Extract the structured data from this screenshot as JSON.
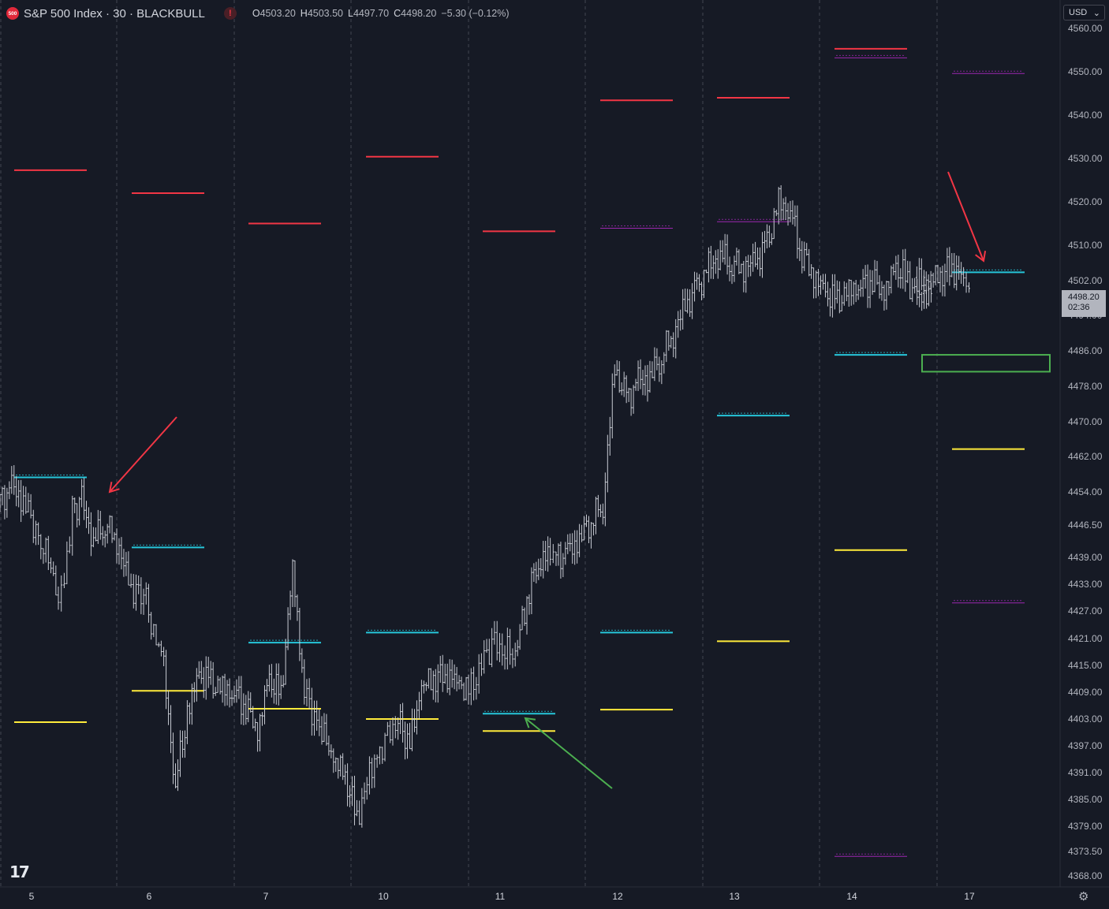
{
  "header": {
    "symbol_badge": "500",
    "title": "S&P 500 Index · 30 · BLACKBULL",
    "alert_icon": "!",
    "ohlc": {
      "o_label": "O",
      "o": "4503.20",
      "h_label": "H",
      "h": "4503.50",
      "l_label": "L",
      "l": "4497.70",
      "c_label": "C",
      "c": "4498.20",
      "change": "−5.30 (−0.12%)"
    }
  },
  "currency_button": {
    "label": "USD",
    "icon": "chevron-down-icon"
  },
  "last_price": {
    "price": "4498.20",
    "countdown": "02:36"
  },
  "colors": {
    "background": "#161a25",
    "candles": "#c8cbd3",
    "resistance": "#f23645",
    "support": "#ffeb3b",
    "pivot": "#26c6da",
    "alt": "#9c27b0",
    "arrow_bear": "#f23645",
    "arrow_bull": "#4caf50",
    "box": "#4caf50"
  },
  "chart_data": {
    "type": "line",
    "title": "",
    "ylabel": "",
    "ylim": [
      4366,
      4562
    ],
    "x_tick_labels": [
      "5",
      "6",
      "7",
      "10",
      "11",
      "12",
      "13",
      "14",
      "17"
    ],
    "y_tick_labels": [
      "4560.00",
      "4550.00",
      "4540.00",
      "4530.00",
      "4520.00",
      "4510.00",
      "4502.00",
      "4494.00",
      "4486.00",
      "4478.00",
      "4470.00",
      "4462.00",
      "4454.00",
      "4446.50",
      "4439.00",
      "4433.00",
      "4427.00",
      "4421.00",
      "4415.00",
      "4409.00",
      "4403.00",
      "4397.00",
      "4391.00",
      "4385.00",
      "4379.00",
      "4373.50",
      "4368.00"
    ],
    "sessions": [
      "5",
      "6",
      "7",
      "10",
      "11",
      "12",
      "13",
      "14",
      "17"
    ],
    "price_path": {
      "x_session": [
        0,
        0.1,
        0.2,
        0.35,
        0.5,
        0.55,
        0.62,
        0.7,
        0.8,
        0.9,
        1.0,
        1.1,
        1.25,
        1.4,
        1.5,
        1.58,
        1.62,
        1.7,
        1.8,
        1.9,
        2.0,
        2.1,
        2.2,
        2.3,
        2.4,
        2.5,
        2.6,
        2.75,
        2.85,
        2.95,
        3.05,
        3.2,
        3.4,
        3.5,
        3.6,
        3.7,
        3.8,
        3.9,
        4.0,
        4.2,
        4.4,
        4.5,
        4.6,
        4.7,
        4.75,
        4.85,
        4.95,
        5.05,
        5.15,
        5.25,
        5.35,
        5.45,
        5.55,
        5.65,
        5.75,
        5.85,
        5.95,
        6.05,
        6.15,
        6.25,
        6.35,
        6.45,
        6.55,
        6.65,
        6.75,
        6.85,
        6.95,
        7.05,
        7.15,
        7.25,
        7.35,
        7.45,
        7.55,
        7.65,
        7.75,
        7.85,
        7.95,
        8.05,
        8.15,
        8.25,
        8.35,
        8.45,
        8.52
      ],
      "close": [
        4452,
        4455,
        4452,
        4443,
        4432,
        4434,
        4450,
        4452,
        4443,
        4447,
        4443,
        4433,
        4429,
        4414,
        4388,
        4402,
        4407,
        4413,
        4411,
        4410,
        4409,
        4406,
        4400,
        4412,
        4408,
        4437,
        4409,
        4400,
        4394,
        4390,
        4381,
        4394,
        4403,
        4397,
        4410,
        4412,
        4413,
        4412,
        4409,
        4420,
        4417,
        4430,
        4438,
        4440,
        4439,
        4440,
        4443,
        4448,
        4451,
        4482,
        4475,
        4479,
        4480,
        4485,
        4490,
        4496,
        4500,
        4505,
        4508,
        4506,
        4505,
        4506,
        4510,
        4520,
        4518,
        4508,
        4503,
        4499,
        4497,
        4500,
        4501,
        4502,
        4499,
        4505,
        4502,
        4498,
        4500,
        4501,
        4502,
        4503,
        4505,
        4503,
        4498.2
      ]
    },
    "levels": [
      {
        "kind": "resistance",
        "session": 0,
        "value": 4527.3
      },
      {
        "kind": "resistance",
        "session": 1,
        "value": 4522.0
      },
      {
        "kind": "resistance",
        "session": 2,
        "value": 4515.0
      },
      {
        "kind": "resistance",
        "session": 3,
        "value": 4530.4
      },
      {
        "kind": "resistance",
        "session": 4,
        "value": 4513.2
      },
      {
        "kind": "resistance",
        "session": 5,
        "value": 4543.4
      },
      {
        "kind": "resistance",
        "session": 6,
        "value": 4544.0
      },
      {
        "kind": "resistance",
        "session": 7,
        "value": 4555.3
      },
      {
        "kind": "alt",
        "session": 5,
        "value": 4513.9
      },
      {
        "kind": "alt",
        "session": 6,
        "value": 4515.4
      },
      {
        "kind": "alt",
        "session": 7,
        "value": 4553.2
      },
      {
        "kind": "alt",
        "session": 8,
        "value": 4549.6
      },
      {
        "kind": "alt",
        "session": 8,
        "value": 4428.8
      },
      {
        "kind": "alt",
        "session": 7,
        "value": 4372.4
      },
      {
        "kind": "pivot",
        "session": 0,
        "value": 4457.3
      },
      {
        "kind": "pivot",
        "session": 1,
        "value": 4441.3
      },
      {
        "kind": "pivot",
        "session": 2,
        "value": 4420.1
      },
      {
        "kind": "pivot",
        "session": 3,
        "value": 4422.3
      },
      {
        "kind": "pivot",
        "session": 4,
        "value": 4404.2
      },
      {
        "kind": "pivot",
        "session": 5,
        "value": 4422.3
      },
      {
        "kind": "pivot",
        "session": 6,
        "value": 4471.4
      },
      {
        "kind": "pivot",
        "session": 7,
        "value": 4485.1
      },
      {
        "kind": "pivot",
        "session": 8,
        "value": 4503.9
      },
      {
        "kind": "support",
        "session": 0,
        "value": 4402.3
      },
      {
        "kind": "support",
        "session": 1,
        "value": 4409.3
      },
      {
        "kind": "support",
        "session": 2,
        "value": 4405.3
      },
      {
        "kind": "support",
        "session": 3,
        "value": 4403.0
      },
      {
        "kind": "support",
        "session": 4,
        "value": 4400.3
      },
      {
        "kind": "support",
        "session": 5,
        "value": 4405.1
      },
      {
        "kind": "support",
        "session": 6,
        "value": 4420.4
      },
      {
        "kind": "support",
        "session": 7,
        "value": 4440.7
      },
      {
        "kind": "support",
        "session": 8,
        "value": 4463.7
      }
    ],
    "zone_box": {
      "session": 8,
      "from": 4481.3,
      "to": 4485.1
    },
    "annotations": [
      {
        "kind": "bearish-arrow",
        "near": "session 6 start, 4452"
      },
      {
        "kind": "bullish-arrow",
        "near": "session 11 open, 4404"
      },
      {
        "kind": "bearish-arrow",
        "near": "session 17, 4505"
      }
    ]
  }
}
